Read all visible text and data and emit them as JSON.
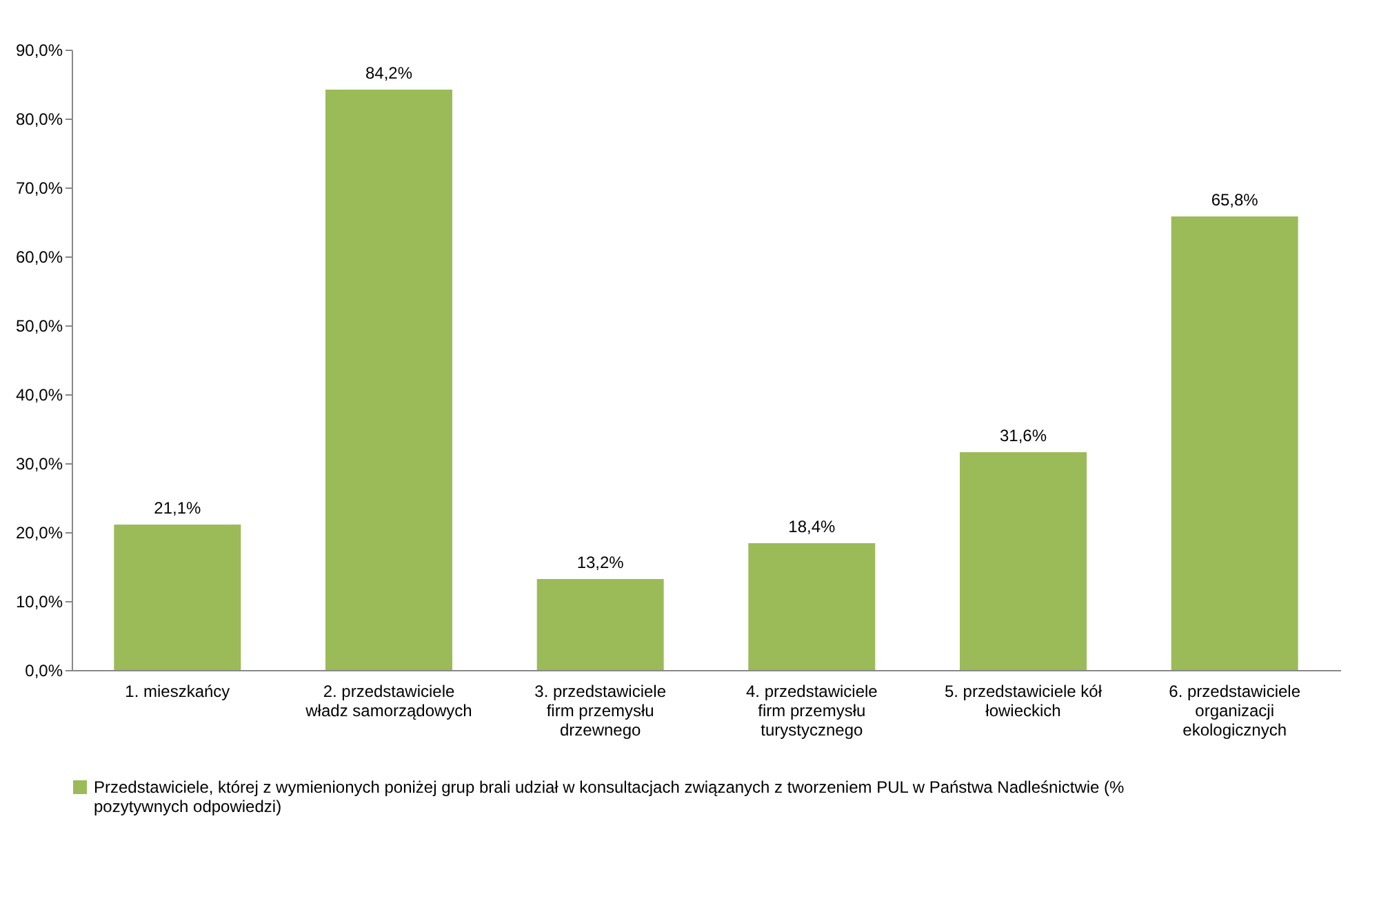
{
  "chart_data": {
    "type": "bar",
    "categories": [
      "1. mieszkańcy",
      "2. przedstawiciele władz samorządowych",
      "3. przedstawiciele firm przemysłu drzewnego",
      "4. przedstawiciele firm przemysłu turystycznego",
      "5. przedstawiciele kół łowieckich",
      "6. przedstawiciele organizacji ekologicznych"
    ],
    "series": [
      {
        "name": "Przedstawiciele, której z wymienionych poniżej grup brali udział w konsultacjach związanych z tworzeniem PUL w Państwa Nadleśnictwie (% pozytywnych odpowiedzi)",
        "color": "#9bbb59",
        "values": [
          21.1,
          84.2,
          13.2,
          18.4,
          31.6,
          65.8
        ]
      }
    ],
    "ylim": [
      0,
      90
    ],
    "yticks": [
      {
        "value": 0,
        "label": "0,0%"
      },
      {
        "value": 10,
        "label": "10,0%"
      },
      {
        "value": 20,
        "label": "20,0%"
      },
      {
        "value": 30,
        "label": "30,0%"
      },
      {
        "value": 40,
        "label": "40,0%"
      },
      {
        "value": 50,
        "label": "50,0%"
      },
      {
        "value": 60,
        "label": "60,0%"
      },
      {
        "value": 70,
        "label": "70,0%"
      },
      {
        "value": 80,
        "label": "80,0%"
      },
      {
        "value": 90,
        "label": "90,0%"
      }
    ],
    "value_labels": [
      "21,1%",
      "84,2%",
      "13,2%",
      "18,4%",
      "31,6%",
      "65,8%"
    ],
    "grid": false,
    "legend": "bottom"
  }
}
